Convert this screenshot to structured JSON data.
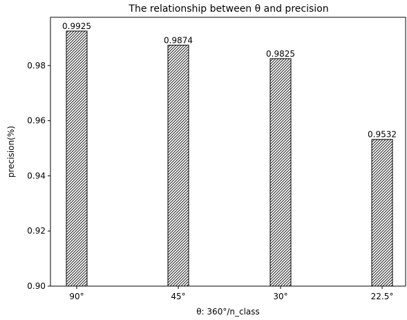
{
  "chart_data": {
    "type": "bar",
    "title": "The relationship between θ and precision",
    "xlabel": "θ: 360°/n_class",
    "ylabel": "precision(%)",
    "categories": [
      "90°",
      "45°",
      "30°",
      "22.5°"
    ],
    "values": [
      0.9925,
      0.9874,
      0.9825,
      0.9532
    ],
    "data_labels": [
      "0.9925",
      "0.9874",
      "0.9825",
      "0.9532"
    ],
    "ylim": [
      0.9,
      0.9975
    ],
    "yticks": [
      0.9,
      0.92,
      0.94,
      0.96,
      0.98
    ],
    "ytick_labels": [
      "0.90",
      "0.92",
      "0.94",
      "0.96",
      "0.98"
    ],
    "bar_fill": "hatched diagonal",
    "bar_color": "#ffffff",
    "edge_color": "#000000",
    "grid": false,
    "legend": "none"
  }
}
